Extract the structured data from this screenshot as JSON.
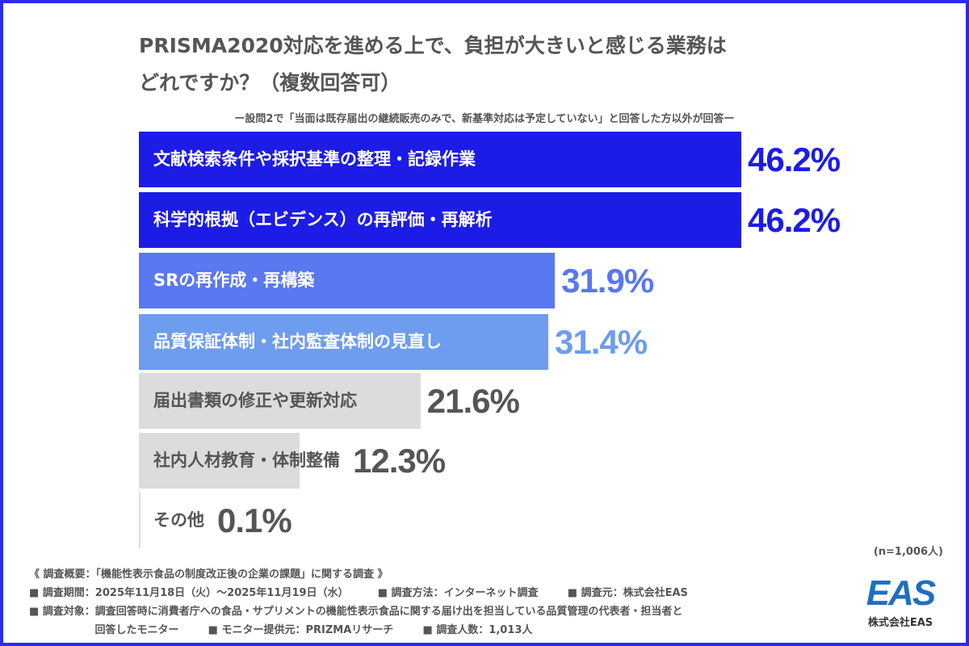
{
  "title_line1": "PRISMA2020対応を進める上で、負担が大きいと感じる業務は",
  "title_line2": "どれですか？（複数回答可）",
  "subtitle": "ー設問2で「当面は既存届出の継続販売のみで、新基準対応は予定していない」と回答した方以外が回答ー",
  "chart_data": {
    "type": "bar",
    "orientation": "horizontal",
    "categories": [
      "文献検索条件や採択基準の整理・記録作業",
      "科学的根拠（エビデンス）の再評価・再解析",
      "SRの再作成・再構築",
      "品質保証体制・社内監査体制の見直し",
      "届出書類の修正や更新対応",
      "社内人材教育・体制整備",
      "その他"
    ],
    "values": [
      46.2,
      46.2,
      31.9,
      31.4,
      21.6,
      12.3,
      0.1
    ],
    "value_labels": [
      "46.2%",
      "46.2%",
      "31.9%",
      "31.4%",
      "21.6%",
      "12.3%",
      "0.1%"
    ],
    "bar_colors": [
      "#1c1ce6",
      "#1c1ce6",
      "#5a78f0",
      "#6e9cef",
      "#dcdcdc",
      "#dcdcdc",
      "#dcdcdc"
    ],
    "label_colors": [
      "#ffffff",
      "#ffffff",
      "#ffffff",
      "#ffffff",
      "#555555",
      "#555555",
      "#555555"
    ],
    "value_colors": [
      "#1c1ce6",
      "#1c1ce6",
      "#5a78f0",
      "#6e9cef",
      "#555555",
      "#555555",
      "#555555"
    ],
    "xlim": [
      0,
      50
    ]
  },
  "sample": "(n=1,006人)",
  "notes": [
    "《 調査概要：「機能性表示食品の制度改正後の企業の課題」に関する調査 》",
    "■ 調査期間：2025年11月18日（火）～2025年11月19日（水）        ■ 調査方法：インターネット調査        ■ 調査元：株式会社EAS",
    "■ 調査対象：調査回答時に消費者庁への食品・サプリメントの機能性表示食品に関する届け出を担当している品質管理の代表者・担当者と",
    "                  回答したモニター        ■ モニター提供元：PRIZMAリサーチ        ■ 調査人数：1,013人"
  ],
  "logo": {
    "mark": "EAS",
    "caption": "株式会社EAS"
  },
  "frame_color": "#2a2af0"
}
